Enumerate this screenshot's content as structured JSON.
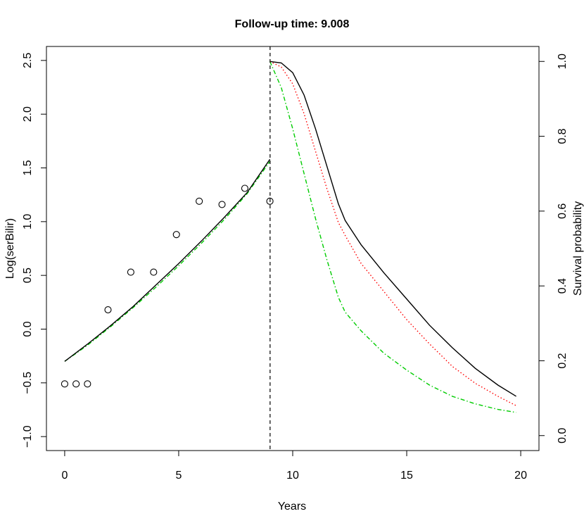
{
  "chart_data": {
    "type": "line",
    "title": "Follow-up time: 9.008",
    "xlabel": "Years",
    "ylabel_left": "Log(serBilir)",
    "ylabel_right": "Survival probability",
    "xlim": [
      -0.8,
      20.8
    ],
    "ylim_left": [
      -1.13,
      2.63
    ],
    "ylim_right": [
      -0.04,
      1.04
    ],
    "x_ticks": [
      0,
      5,
      10,
      15,
      20
    ],
    "y_left_ticks": [
      -1.0,
      -0.5,
      0.0,
      0.5,
      1.0,
      1.5,
      2.0,
      2.5
    ],
    "y_left_tick_labels": [
      "−1.0",
      "−0.5",
      "0.0",
      "0.5",
      "1.0",
      "1.5",
      "2.0",
      "2.5"
    ],
    "y_right_ticks": [
      0.0,
      0.2,
      0.4,
      0.6,
      0.8,
      1.0
    ],
    "y_right_tick_labels": [
      "0.0",
      "0.2",
      "0.4",
      "0.6",
      "0.8",
      "1.0"
    ],
    "grid": false,
    "followup_time": 9.008,
    "observations": {
      "x": [
        0.0,
        0.5,
        1.0,
        1.9,
        2.9,
        3.9,
        4.9,
        5.9,
        6.9,
        7.9,
        9.0
      ],
      "y": [
        -0.51,
        -0.51,
        -0.51,
        0.18,
        0.53,
        0.53,
        0.88,
        1.19,
        1.16,
        1.31,
        1.19
      ]
    },
    "longitudinal_fit": {
      "x": [
        0,
        1,
        2,
        3,
        4,
        5,
        6,
        7,
        8,
        9
      ],
      "y": [
        -0.3,
        -0.14,
        0.03,
        0.21,
        0.41,
        0.61,
        0.82,
        1.04,
        1.27,
        1.58
      ],
      "color": "#000000"
    },
    "longitudinal_fit_lower": {
      "x": [
        0,
        1,
        2,
        3,
        4,
        5,
        6,
        7,
        8,
        9
      ],
      "y": [
        -0.3,
        -0.15,
        0.02,
        0.2,
        0.39,
        0.59,
        0.8,
        1.02,
        1.26,
        1.56
      ],
      "color": "#00cc00"
    },
    "survival_series": [
      {
        "x": [
          9.0,
          9.5,
          10.0,
          10.5,
          11.0,
          11.5,
          12.0,
          12.3,
          13.0,
          14.0,
          15.0,
          16.0,
          17.0,
          18.0,
          19.0,
          19.8
        ],
        "y": [
          1.0,
          0.996,
          0.97,
          0.91,
          0.82,
          0.72,
          0.62,
          0.575,
          0.51,
          0.435,
          0.365,
          0.295,
          0.235,
          0.18,
          0.135,
          0.105
        ],
        "style": "solid",
        "color": "#000000"
      },
      {
        "x": [
          9.0,
          9.5,
          10.0,
          10.5,
          11.0,
          11.5,
          12.0,
          12.3,
          13.0,
          14.0,
          15.0,
          16.0,
          17.0,
          18.0,
          19.0,
          19.8
        ],
        "y": [
          1.0,
          0.985,
          0.94,
          0.86,
          0.76,
          0.66,
          0.57,
          0.535,
          0.46,
          0.385,
          0.31,
          0.245,
          0.185,
          0.14,
          0.105,
          0.08
        ],
        "style": "dotted",
        "color": "#ff0000"
      },
      {
        "x": [
          9.0,
          9.5,
          10.0,
          10.5,
          11.0,
          11.5,
          12.0,
          12.3,
          13.0,
          14.0,
          15.0,
          16.0,
          17.0,
          18.0,
          19.0,
          19.8
        ],
        "y": [
          1.0,
          0.93,
          0.82,
          0.7,
          0.58,
          0.47,
          0.37,
          0.33,
          0.28,
          0.22,
          0.175,
          0.135,
          0.105,
          0.085,
          0.07,
          0.062
        ],
        "style": "dashdot",
        "color": "#00cc00"
      }
    ]
  }
}
